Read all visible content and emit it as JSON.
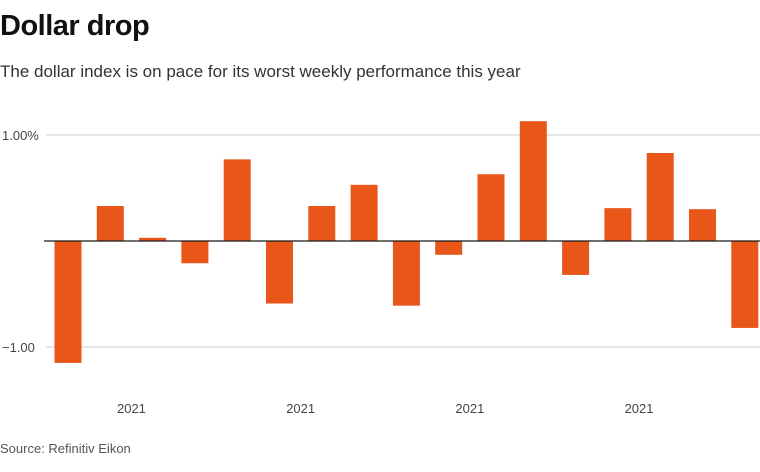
{
  "header": {
    "title": "Dollar drop",
    "subtitle": "The dollar index is on pace for its worst weekly performance this year"
  },
  "footer": {
    "source": "Source: Refinitiv Eikon"
  },
  "colors": {
    "bar": "#e8561a",
    "grid": "#cccccc",
    "axis_text": "#444444"
  },
  "chart_data": {
    "type": "bar",
    "categories": [
      "",
      "",
      "",
      "",
      "",
      "",
      "",
      "",
      "",
      "",
      "",
      "",
      "",
      "",
      "",
      "",
      ""
    ],
    "values": [
      -1.15,
      0.33,
      0.03,
      -0.21,
      0.77,
      -0.59,
      0.33,
      0.53,
      -0.61,
      -0.13,
      0.63,
      1.13,
      -0.32,
      0.31,
      0.83,
      0.3,
      -0.82
    ],
    "y_ticks": [
      {
        "value": 1.0,
        "label": "1.00%"
      },
      {
        "value": -1.0,
        "label": "−1.00"
      }
    ],
    "x_labels": [
      {
        "index": 1.5,
        "label": "2021"
      },
      {
        "index": 5.5,
        "label": "2021"
      },
      {
        "index": 9.5,
        "label": "2021"
      },
      {
        "index": 13.5,
        "label": "2021"
      }
    ],
    "ylim": [
      -1.2,
      1.2
    ],
    "grid": true,
    "xlabel": "",
    "ylabel": "",
    "legend": "none"
  }
}
